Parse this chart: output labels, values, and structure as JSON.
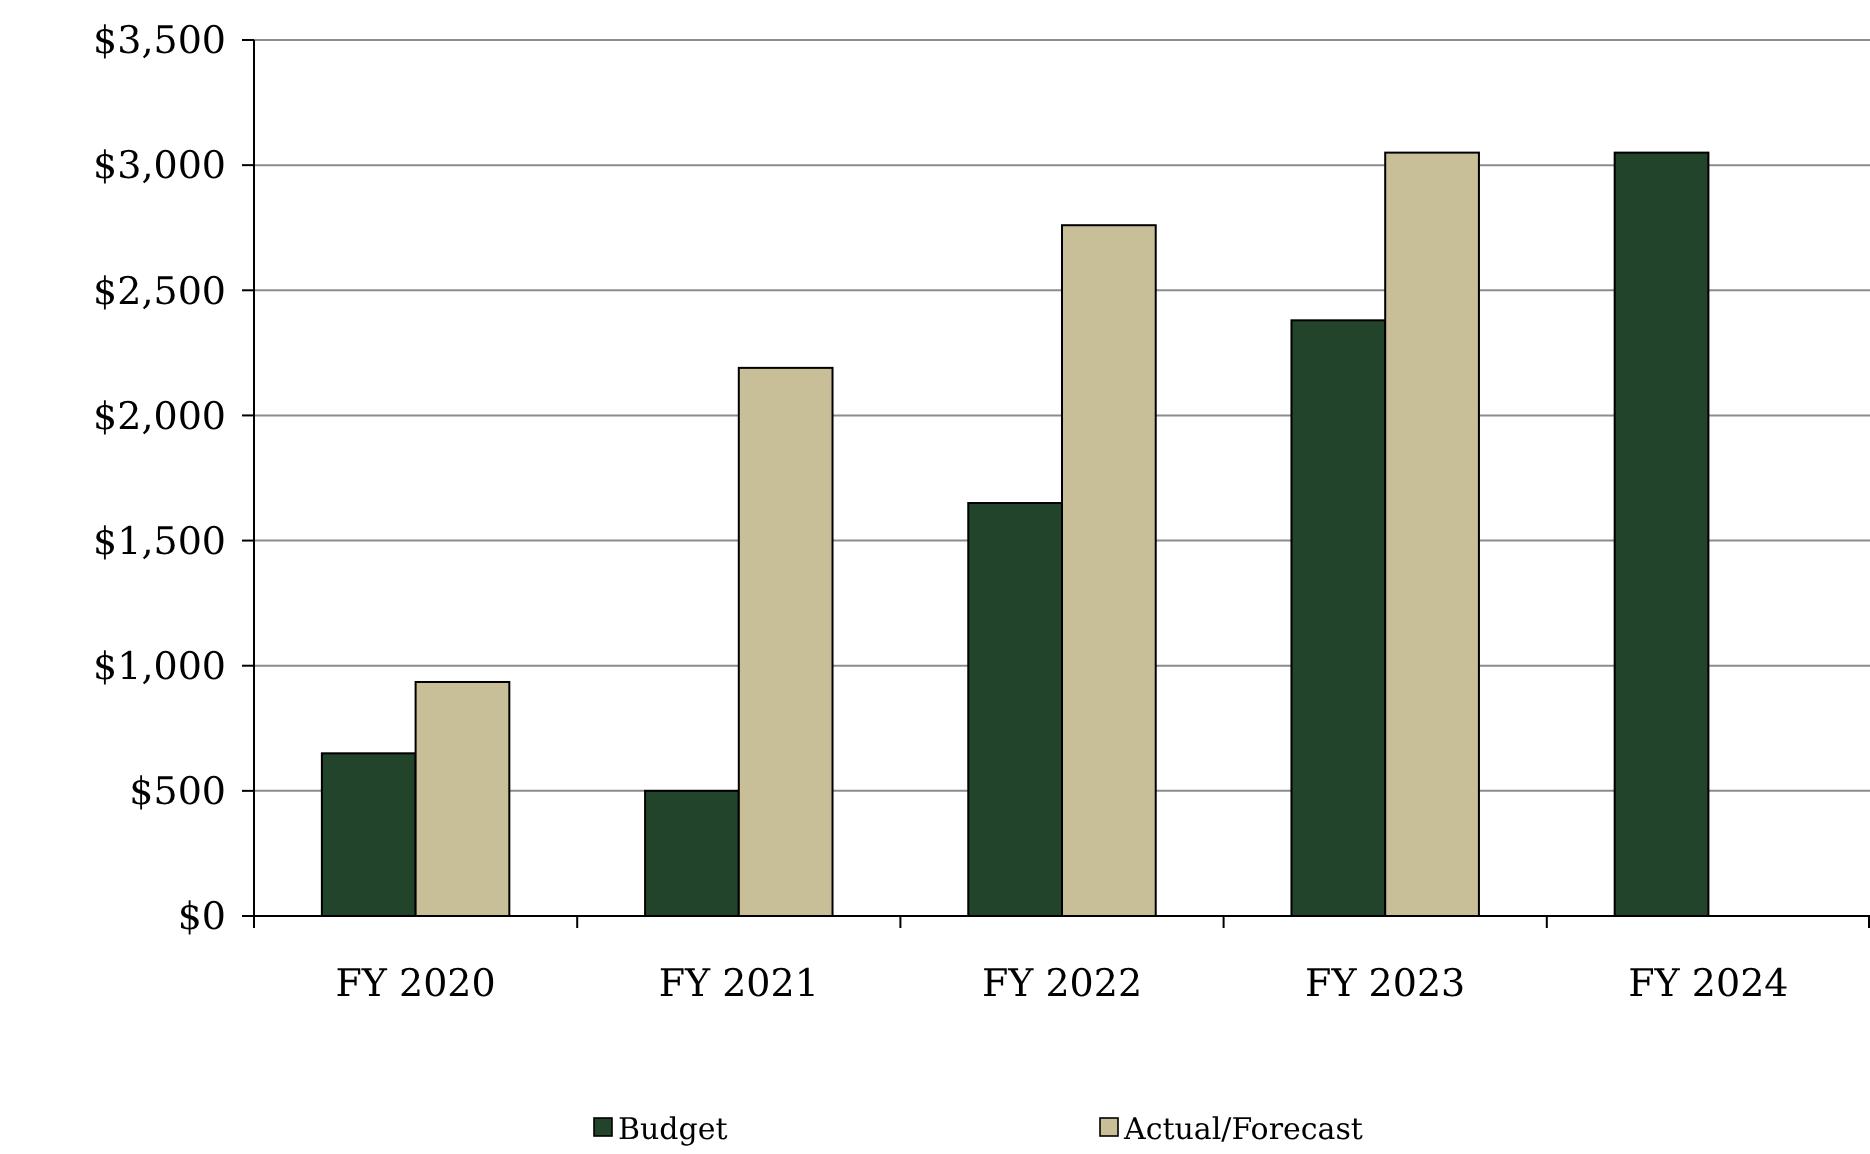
{
  "chart_data": {
    "type": "bar",
    "categories": [
      "FY 2020",
      "FY 2021",
      "FY 2022",
      "FY 2023",
      "FY 2024"
    ],
    "series": [
      {
        "name": "Budget",
        "color": "#21442a",
        "values": [
          650,
          500,
          1650,
          2380,
          3050
        ]
      },
      {
        "name": "Actual/Forecast",
        "color": "#c8bf98",
        "values": [
          935,
          2190,
          2760,
          3050,
          null
        ]
      }
    ],
    "ylim": [
      0,
      3500
    ],
    "yticks": [
      {
        "value": 0,
        "label": "$0"
      },
      {
        "value": 500,
        "label": "$500"
      },
      {
        "value": 1000,
        "label": "$1,000"
      },
      {
        "value": 1500,
        "label": "$1,500"
      },
      {
        "value": 2000,
        "label": "$2,000"
      },
      {
        "value": 2500,
        "label": "$2,500"
      },
      {
        "value": 3000,
        "label": "$3,000"
      },
      {
        "value": 3500,
        "label": "$3,500"
      }
    ],
    "grid": "y",
    "legend": "bottom"
  }
}
